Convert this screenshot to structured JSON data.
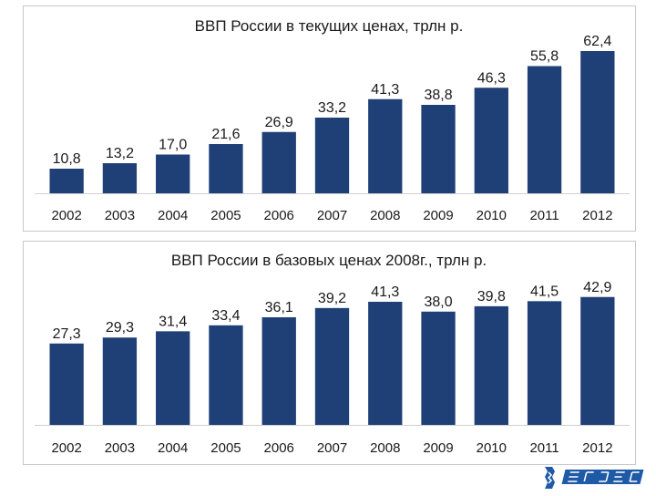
{
  "chart_data": [
    {
      "type": "bar",
      "title": "ВВП России в текущих ценах, трлн р.",
      "categories": [
        "2002",
        "2003",
        "2004",
        "2005",
        "2006",
        "2007",
        "2008",
        "2009",
        "2010",
        "2011",
        "2012"
      ],
      "values": [
        10.8,
        13.2,
        17.0,
        21.6,
        26.9,
        33.2,
        41.3,
        38.8,
        46.3,
        55.8,
        62.4
      ],
      "value_labels": [
        "10,8",
        "13,2",
        "17,0",
        "21,6",
        "26,9",
        "33,2",
        "41,3",
        "38,8",
        "46,3",
        "55,8",
        "62,4"
      ],
      "ylim": [
        0,
        68
      ],
      "grid": false,
      "legend": "none",
      "bar_color": "#1f3f77"
    },
    {
      "type": "bar",
      "title": "ВВП России в базовых ценах 2008г., трлн р.",
      "categories": [
        "2002",
        "2003",
        "2004",
        "2005",
        "2006",
        "2007",
        "2008",
        "2009",
        "2010",
        "2011",
        "2012"
      ],
      "values": [
        27.3,
        29.3,
        31.4,
        33.4,
        36.1,
        39.2,
        41.3,
        38.0,
        39.8,
        41.5,
        42.9
      ],
      "value_labels": [
        "27,3",
        "29,3",
        "31,4",
        "33,4",
        "36,1",
        "39,2",
        "41,3",
        "38,0",
        "39,8",
        "41,5",
        "42,9"
      ],
      "ylim": [
        0,
        52
      ],
      "grid": false,
      "legend": "none",
      "bar_color": "#1f3f77"
    }
  ],
  "logo": {
    "text": "ВГУЭС",
    "color": "#1f5aa6"
  }
}
